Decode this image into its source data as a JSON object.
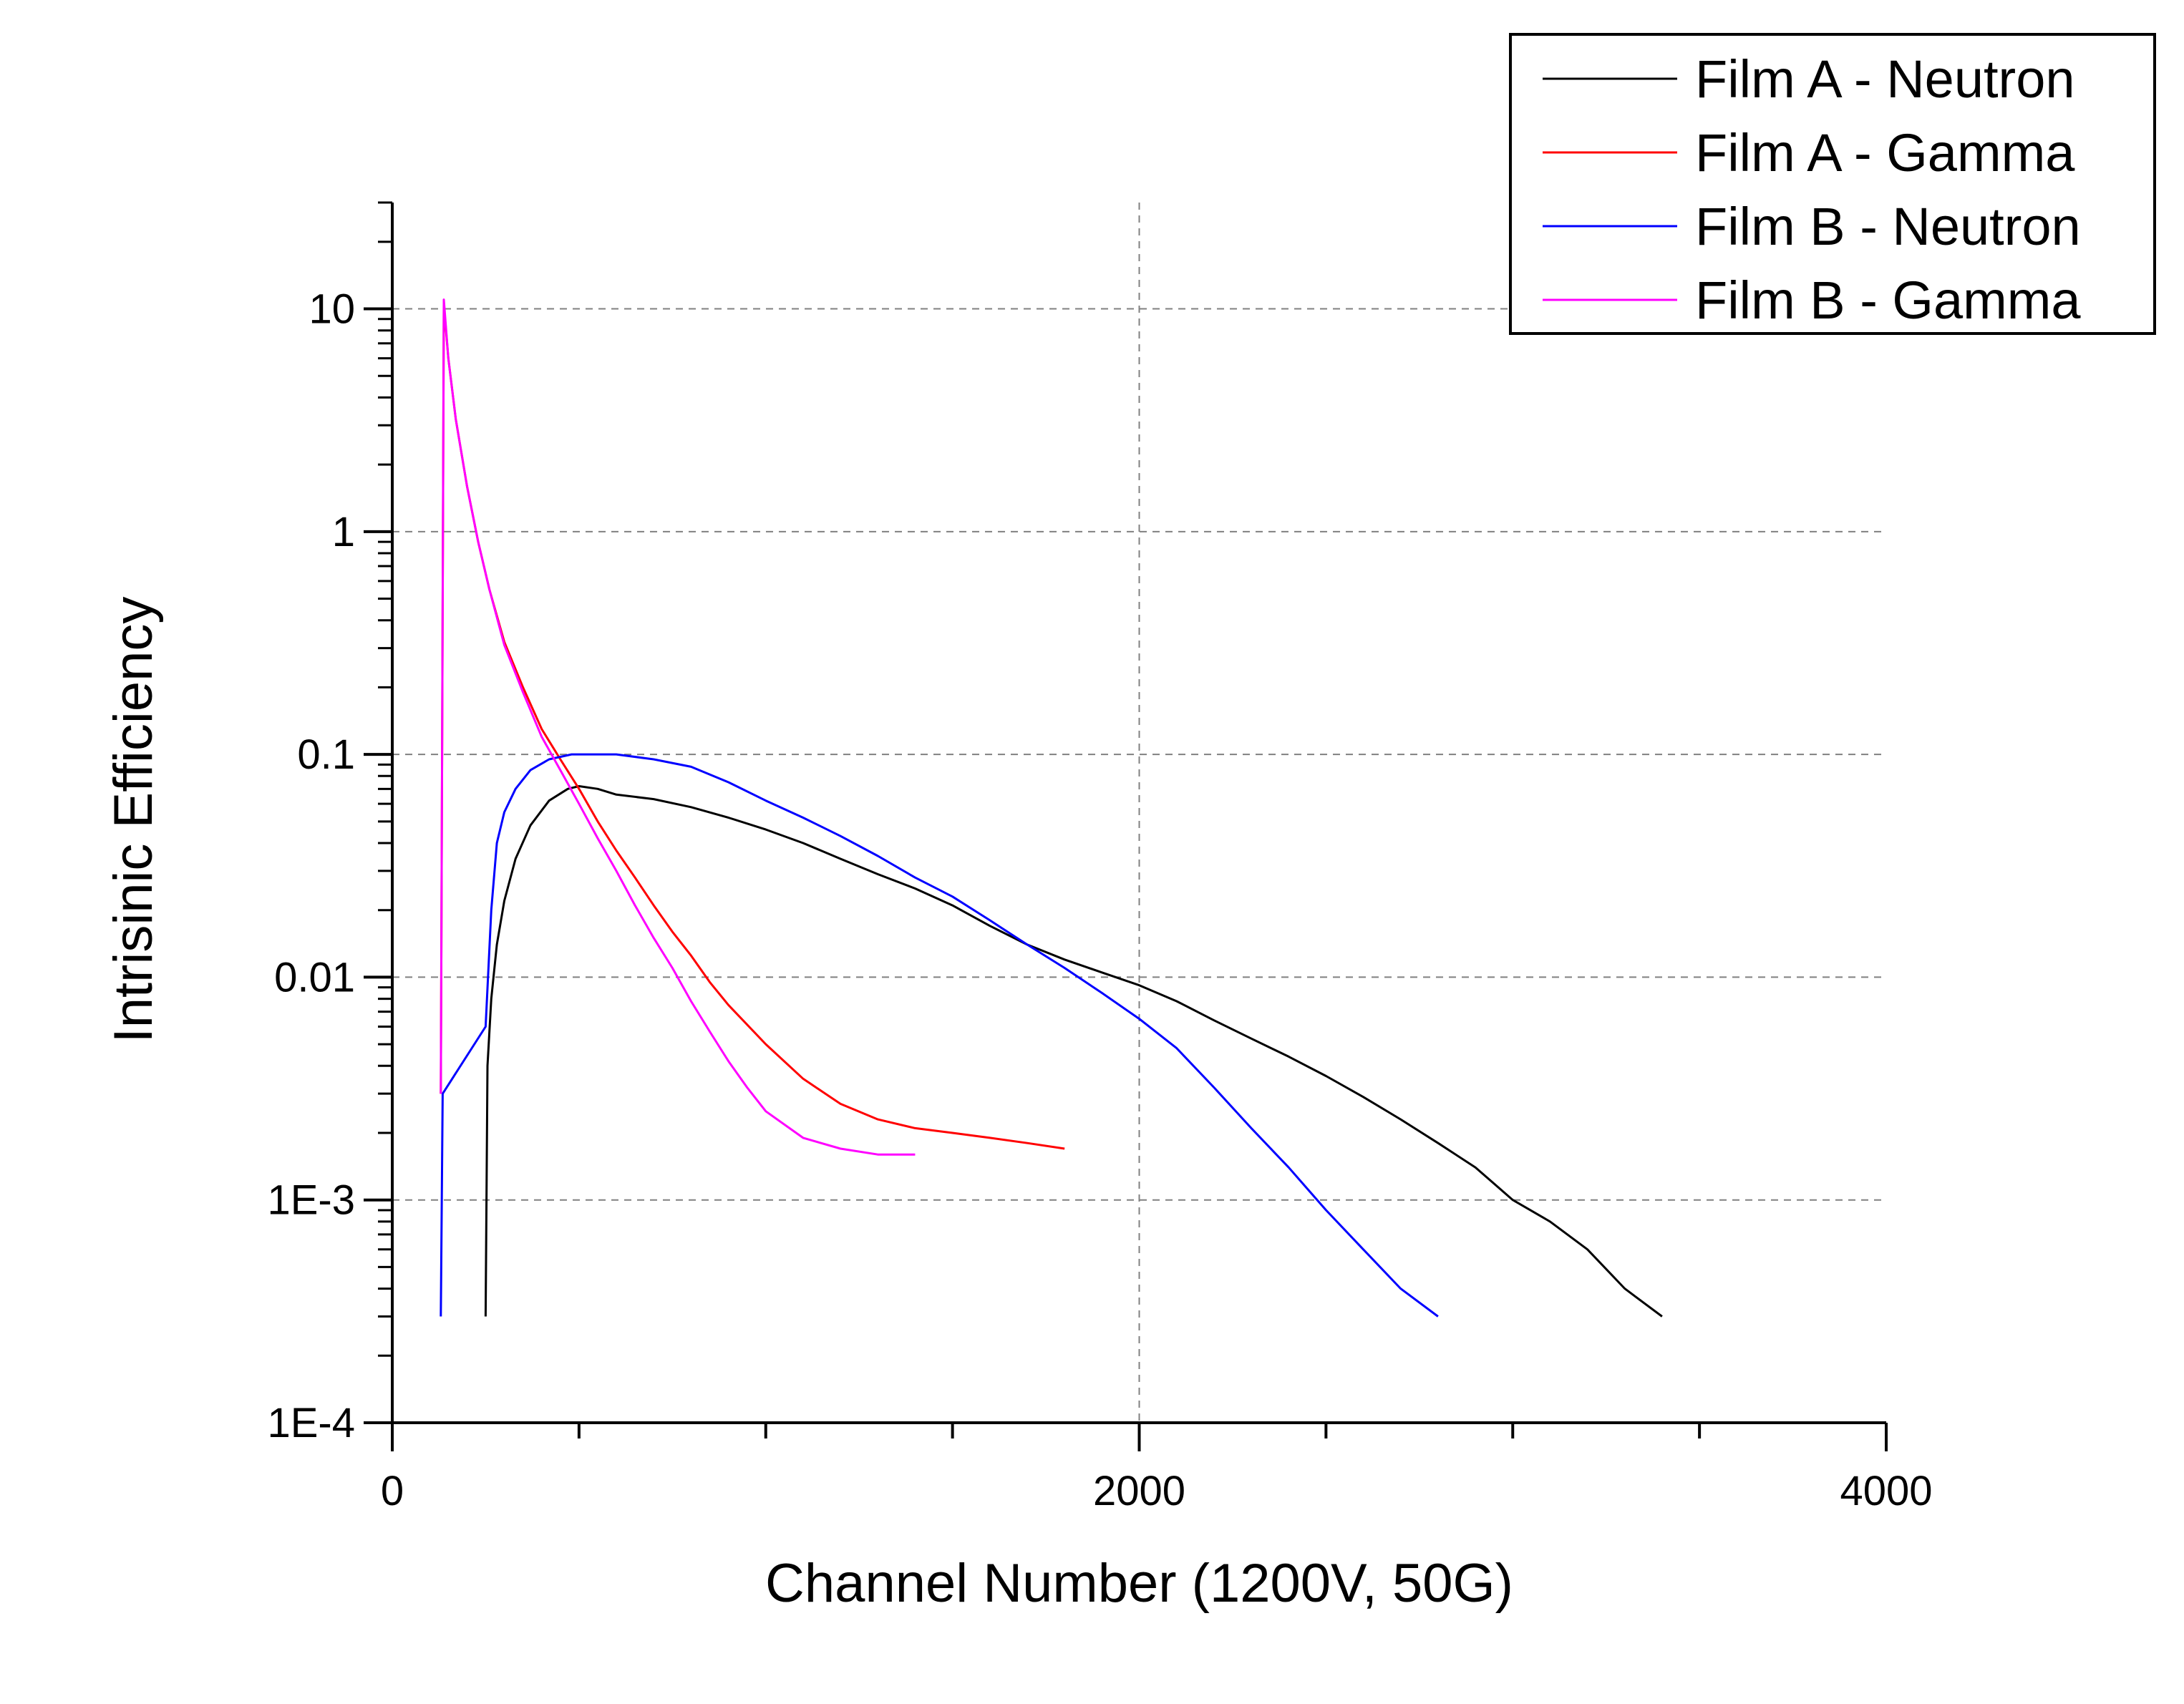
{
  "chart_data": {
    "type": "line",
    "title": "",
    "xlabel": "Channel Number (1200V, 50G)",
    "ylabel": "Intrisinic Efficiency",
    "x_range": [
      0,
      4000
    ],
    "y_range": [
      0.0001,
      30
    ],
    "y_scale": "log",
    "x_ticks": [
      0,
      2000,
      4000
    ],
    "x_tick_labels": [
      "0",
      "2000",
      "4000"
    ],
    "y_ticks": [
      0.0001,
      0.001,
      0.01,
      0.1,
      1,
      10
    ],
    "y_tick_labels": [
      "1E-4",
      "1E-3",
      "0.01",
      "0.1",
      "1",
      "10"
    ],
    "grid": "dashed, at major ticks",
    "legend_position": "top-right",
    "series": [
      {
        "name": "Film A - Neutron",
        "color": "#000000",
        "points": [
          [
            250,
            0.0003
          ],
          [
            255,
            0.004
          ],
          [
            265,
            0.008
          ],
          [
            280,
            0.014
          ],
          [
            300,
            0.022
          ],
          [
            330,
            0.034
          ],
          [
            370,
            0.048
          ],
          [
            420,
            0.062
          ],
          [
            470,
            0.07
          ],
          [
            500,
            0.072
          ],
          [
            550,
            0.07
          ],
          [
            600,
            0.066
          ],
          [
            700,
            0.063
          ],
          [
            800,
            0.058
          ],
          [
            900,
            0.052
          ],
          [
            1000,
            0.046
          ],
          [
            1100,
            0.04
          ],
          [
            1200,
            0.034
          ],
          [
            1300,
            0.029
          ],
          [
            1400,
            0.025
          ],
          [
            1500,
            0.021
          ],
          [
            1600,
            0.017
          ],
          [
            1700,
            0.014
          ],
          [
            1800,
            0.012
          ],
          [
            1900,
            0.0105
          ],
          [
            2000,
            0.0092
          ],
          [
            2100,
            0.0078
          ],
          [
            2200,
            0.0064
          ],
          [
            2300,
            0.0053
          ],
          [
            2400,
            0.0044
          ],
          [
            2500,
            0.0036
          ],
          [
            2600,
            0.0029
          ],
          [
            2700,
            0.0023
          ],
          [
            2800,
            0.0018
          ],
          [
            2900,
            0.0014
          ],
          [
            3000,
            0.001
          ],
          [
            3100,
            0.0008
          ],
          [
            3200,
            0.0006
          ],
          [
            3300,
            0.0004
          ],
          [
            3400,
            0.0003
          ]
        ]
      },
      {
        "name": "Film A - Gamma",
        "color": "#ff0000",
        "points": [
          [
            130,
            0.003
          ],
          [
            138,
            10.5
          ],
          [
            150,
            6
          ],
          [
            170,
            3.2
          ],
          [
            200,
            1.6
          ],
          [
            230,
            0.9
          ],
          [
            260,
            0.55
          ],
          [
            300,
            0.32
          ],
          [
            350,
            0.2
          ],
          [
            400,
            0.13
          ],
          [
            450,
            0.095
          ],
          [
            500,
            0.07
          ],
          [
            550,
            0.05
          ],
          [
            600,
            0.037
          ],
          [
            650,
            0.028
          ],
          [
            700,
            0.021
          ],
          [
            750,
            0.016
          ],
          [
            800,
            0.0125
          ],
          [
            850,
            0.0095
          ],
          [
            900,
            0.0075
          ],
          [
            1000,
            0.005
          ],
          [
            1100,
            0.0035
          ],
          [
            1200,
            0.0027
          ],
          [
            1300,
            0.0023
          ],
          [
            1400,
            0.0021
          ],
          [
            1500,
            0.002
          ],
          [
            1600,
            0.0019
          ],
          [
            1700,
            0.0018
          ],
          [
            1800,
            0.0017
          ]
        ]
      },
      {
        "name": "Film B - Neutron",
        "color": "#0000ff",
        "points": [
          [
            130,
            0.0003
          ],
          [
            135,
            0.003
          ],
          [
            250,
            0.006
          ],
          [
            265,
            0.02
          ],
          [
            280,
            0.04
          ],
          [
            300,
            0.055
          ],
          [
            330,
            0.07
          ],
          [
            370,
            0.085
          ],
          [
            420,
            0.095
          ],
          [
            480,
            0.1
          ],
          [
            550,
            0.1
          ],
          [
            600,
            0.1
          ],
          [
            700,
            0.095
          ],
          [
            800,
            0.088
          ],
          [
            900,
            0.075
          ],
          [
            1000,
            0.062
          ],
          [
            1100,
            0.052
          ],
          [
            1200,
            0.043
          ],
          [
            1300,
            0.035
          ],
          [
            1400,
            0.028
          ],
          [
            1500,
            0.023
          ],
          [
            1600,
            0.018
          ],
          [
            1700,
            0.014
          ],
          [
            1800,
            0.011
          ],
          [
            1900,
            0.0085
          ],
          [
            2000,
            0.0065
          ],
          [
            2100,
            0.0048
          ],
          [
            2200,
            0.0032
          ],
          [
            2300,
            0.0021
          ],
          [
            2400,
            0.0014
          ],
          [
            2500,
            0.0009
          ],
          [
            2600,
            0.0006
          ],
          [
            2700,
            0.0004
          ],
          [
            2800,
            0.0003
          ]
        ]
      },
      {
        "name": "Film B - Gamma",
        "color": "#ff00ff",
        "points": [
          [
            130,
            0.003
          ],
          [
            138,
            11
          ],
          [
            150,
            6
          ],
          [
            170,
            3.2
          ],
          [
            200,
            1.6
          ],
          [
            230,
            0.9
          ],
          [
            260,
            0.55
          ],
          [
            300,
            0.31
          ],
          [
            350,
            0.19
          ],
          [
            400,
            0.12
          ],
          [
            450,
            0.085
          ],
          [
            500,
            0.06
          ],
          [
            550,
            0.042
          ],
          [
            600,
            0.03
          ],
          [
            650,
            0.021
          ],
          [
            700,
            0.015
          ],
          [
            750,
            0.011
          ],
          [
            800,
            0.0078
          ],
          [
            850,
            0.0057
          ],
          [
            900,
            0.0042
          ],
          [
            950,
            0.0032
          ],
          [
            1000,
            0.0025
          ],
          [
            1100,
            0.0019
          ],
          [
            1200,
            0.0017
          ],
          [
            1300,
            0.0016
          ],
          [
            1400,
            0.0016
          ]
        ]
      }
    ]
  }
}
